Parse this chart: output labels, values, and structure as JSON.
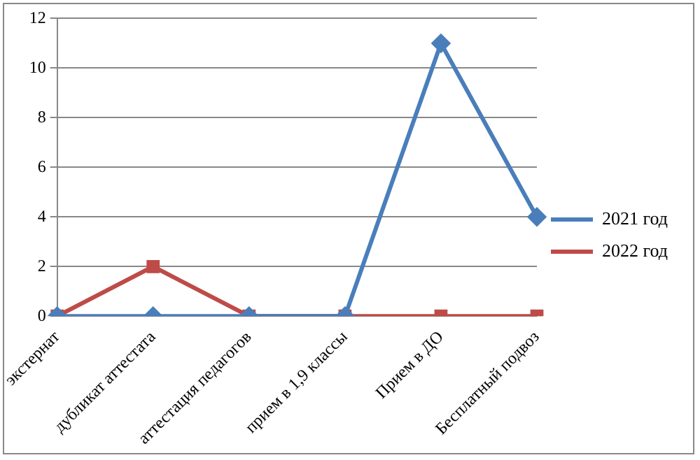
{
  "chart_data": {
    "type": "line",
    "categories": [
      "экстернат",
      "дубликат аттестата",
      "аттестация педагогов",
      "прием в 1,9 классы",
      "Прием в ДО",
      "Бесплатный подвоз"
    ],
    "series": [
      {
        "name": "2021 год",
        "color": "#4a7ebb",
        "marker": "diamond",
        "values": [
          0,
          0,
          0,
          0,
          11,
          4
        ]
      },
      {
        "name": "2022 год",
        "color": "#be4b48",
        "marker": "square",
        "values": [
          0,
          2,
          0,
          0,
          0,
          0
        ]
      }
    ],
    "ylim": [
      0,
      12
    ],
    "yticks": [
      0,
      2,
      4,
      6,
      8,
      10,
      12
    ],
    "grid": "y",
    "legend": "right",
    "line_style": "solid"
  }
}
